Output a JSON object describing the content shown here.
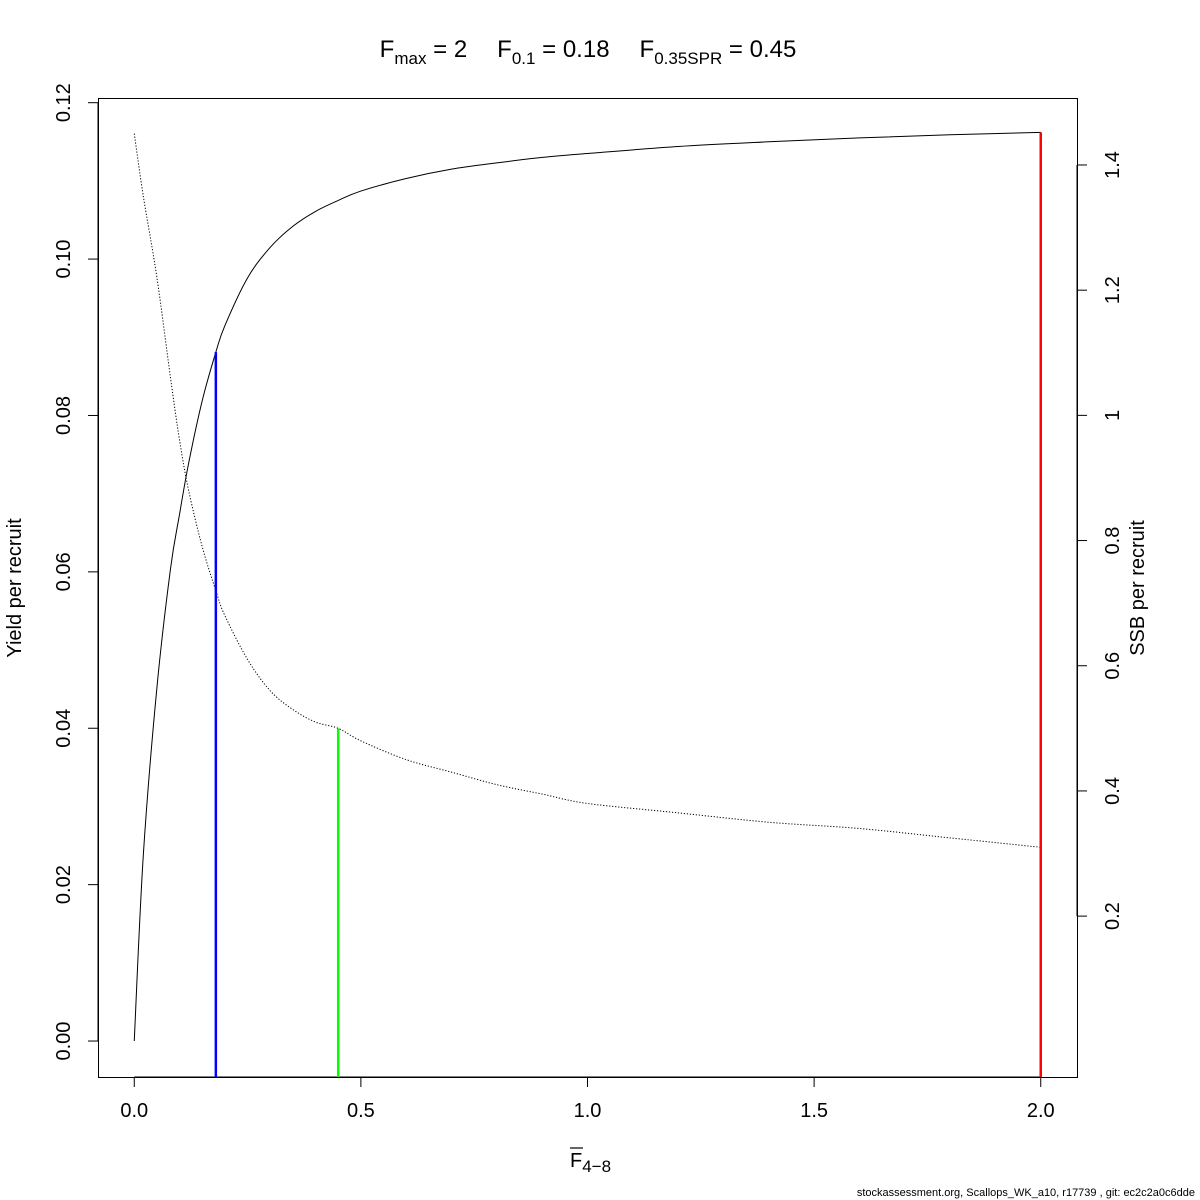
{
  "header": {
    "fmax": {
      "main": "F",
      "sub": "max",
      "rest": " = 2"
    },
    "f01": {
      "main": "F",
      "sub": "0.1",
      "rest": " = 0.18"
    },
    "fspr": {
      "main": "F",
      "sub": "0.35SPR",
      "rest": " = 0.45"
    }
  },
  "axes": {
    "x_label_main": "F",
    "x_label_sub": "4−8",
    "y_left_label": "Yield per recruit",
    "y_right_label": "SSB per recruit"
  },
  "footer": "stockassessment.org, Scallops_WK_a10, r17739 , git: ec2c2a0c6dde",
  "colors": {
    "fmax_line": "#ff0000",
    "f01_line": "#0000ff",
    "fspr_line": "#00ff00",
    "curves": "#000000"
  },
  "chart_data": {
    "type": "line",
    "xlim": [
      -0.08,
      2.08
    ],
    "ylim_left": [
      -0.0046,
      0.1206
    ],
    "ylim_right": [
      -0.057,
      1.507
    ],
    "x_ticks": [
      0.0,
      0.5,
      1.0,
      1.5,
      2.0
    ],
    "x_tick_labels": [
      "0.0",
      "0.5",
      "1.0",
      "1.5",
      "2.0"
    ],
    "y_left_ticks": [
      0.0,
      0.02,
      0.04,
      0.06,
      0.08,
      0.1,
      0.12
    ],
    "y_left_tick_labels": [
      "0.00",
      "0.02",
      "0.04",
      "0.06",
      "0.08",
      "0.10",
      "0.12"
    ],
    "y_right_ticks": [
      0.2,
      0.4,
      0.6,
      0.8,
      1.0,
      1.2,
      1.4
    ],
    "y_right_tick_labels": [
      "0.2",
      "0.4",
      "0.6",
      "0.8",
      "1",
      "1.2",
      "1.4"
    ],
    "series": [
      {
        "axis": "left",
        "line": "solid",
        "x": [
          0,
          0.02,
          0.05,
          0.08,
          0.1,
          0.12,
          0.15,
          0.18,
          0.2,
          0.25,
          0.3,
          0.35,
          0.4,
          0.45,
          0.5,
          0.6,
          0.7,
          0.8,
          0.9,
          1.0,
          1.2,
          1.4,
          1.6,
          1.8,
          2.0
        ],
        "y": [
          0.0,
          0.0238,
          0.0452,
          0.0604,
          0.0674,
          0.0739,
          0.0819,
          0.0881,
          0.0915,
          0.0976,
          0.1015,
          0.1042,
          0.1061,
          0.1075,
          0.1087,
          0.1103,
          0.1115,
          0.1123,
          0.113,
          0.1135,
          0.1144,
          0.115,
          0.1155,
          0.1159,
          0.1162
        ]
      },
      {
        "axis": "right",
        "line": "dotted",
        "x": [
          0,
          0.02,
          0.05,
          0.08,
          0.1,
          0.12,
          0.15,
          0.18,
          0.2,
          0.25,
          0.3,
          0.35,
          0.4,
          0.45,
          0.5,
          0.6,
          0.7,
          0.8,
          0.9,
          1.0,
          1.2,
          1.4,
          1.6,
          1.8,
          2.0
        ],
        "y": [
          1.45,
          1.35,
          1.22,
          1.06,
          0.96,
          0.88,
          0.79,
          0.72,
          0.68,
          0.61,
          0.56,
          0.53,
          0.51,
          0.5,
          0.48,
          0.45,
          0.43,
          0.41,
          0.395,
          0.38,
          0.365,
          0.35,
          0.34,
          0.325,
          0.31
        ]
      }
    ],
    "reference_lines": [
      {
        "name": "F0.1",
        "x": 0.18,
        "y_top": 0.0881,
        "axis": "left",
        "color": "#0000ff"
      },
      {
        "name": "F0.35SPR",
        "x": 0.45,
        "y_top": 0.5,
        "axis": "right",
        "color": "#00ff00"
      },
      {
        "name": "Fmax",
        "x": 2.0,
        "y_top": 0.1162,
        "axis": "left",
        "color": "#ff0000"
      }
    ]
  }
}
